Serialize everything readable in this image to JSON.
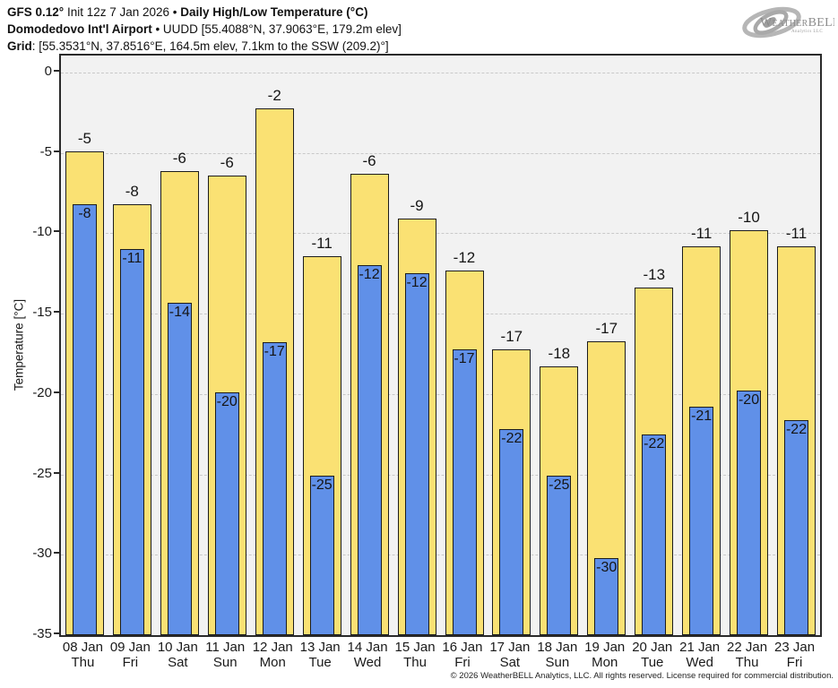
{
  "header": {
    "line1": {
      "bold1": "GFS 0.12°",
      "regular1": " Init 12z 7 Jan 2026 • ",
      "bold2": "Daily High/Low Temperature (°C)"
    },
    "line2": {
      "bold1": "Domodedovo Int'l Airport",
      "regular1": " • UUDD [55.4088°N, 37.9063°E, 179.2m elev]"
    },
    "line3": {
      "bold1": "Grid",
      "regular1": ": [55.3531°N, 37.8516°E, 164.5m elev, 7.1km to the SSW (209.2)°]"
    }
  },
  "logo": {
    "brand": "WeatherBELL",
    "sub": "Analytics LLC"
  },
  "footer": {
    "copyright": "© 2026 WeatherBELL Analytics, LLC. All rights reserved. License required for commercial distribution."
  },
  "chart_data": {
    "type": "bar",
    "title": "Daily High/Low Temperature (°C)",
    "ylabel": "Temperature [°C]",
    "ylim": [
      -35,
      1
    ],
    "yticks": [
      0,
      -5,
      -10,
      -15,
      -20,
      -25,
      -30,
      -35
    ],
    "grid": true,
    "legend_position": "none",
    "categories_date": [
      "08 Jan",
      "09 Jan",
      "10 Jan",
      "11 Jan",
      "12 Jan",
      "13 Jan",
      "14 Jan",
      "15 Jan",
      "16 Jan",
      "17 Jan",
      "18 Jan",
      "19 Jan",
      "20 Jan",
      "21 Jan",
      "22 Jan",
      "23 Jan"
    ],
    "categories_day": [
      "Thu",
      "Fri",
      "Sat",
      "Sun",
      "Mon",
      "Tue",
      "Wed",
      "Thu",
      "Fri",
      "Sat",
      "Sun",
      "Mon",
      "Tue",
      "Wed",
      "Thu",
      "Fri"
    ],
    "series": [
      {
        "name": "Daily High",
        "color": "#FAE173",
        "values": [
          -4.9,
          -8.2,
          -6.1,
          -6.4,
          -2.2,
          -11.4,
          -6.3,
          -9.1,
          -12.3,
          -17.2,
          -18.3,
          -16.7,
          -13.4,
          -10.8,
          -9.8,
          -10.8
        ],
        "labels": [
          "-5",
          "-8",
          "-6",
          "-6",
          "-2",
          "-11",
          "-6",
          "-9",
          "-12",
          "-17",
          "-18",
          "-17",
          "-13",
          "-11",
          "-10",
          "-11"
        ]
      },
      {
        "name": "Daily Low",
        "color": "#6090E8",
        "values": [
          -8.2,
          -11.0,
          -14.3,
          -19.9,
          -16.8,
          -25.1,
          -12.0,
          -12.5,
          -17.2,
          -22.2,
          -25.1,
          -30.2,
          -22.5,
          -20.8,
          -19.8,
          -21.6
        ],
        "labels": [
          "-8",
          "-11",
          "-14",
          "-20",
          "-17",
          "-25",
          "-12",
          "-12",
          "-17",
          "-22",
          "-25",
          "-30",
          "-22",
          "-21",
          "-20",
          "-22"
        ]
      }
    ]
  },
  "style_colors": {
    "bar_outline": "#1c1c1c",
    "plot_bg": "#f2f2f2",
    "grid_color": "#c9c9c9",
    "axis_color": "#2a2a2a",
    "logo_gray": "#a9a9a9",
    "logo_text": "#8c8c8c"
  }
}
